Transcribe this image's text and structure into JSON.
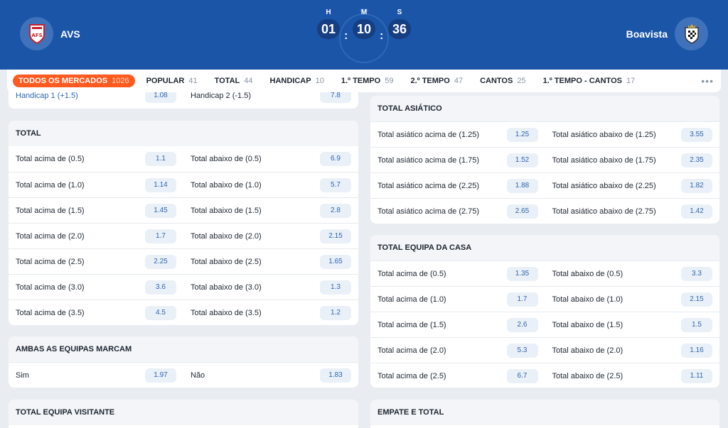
{
  "header": {
    "home": {
      "name": "AVS",
      "logo_text": "AFS",
      "logo_icon": "avs-crest-icon"
    },
    "away": {
      "name": "Boavista",
      "logo_icon": "boavista-crest-icon"
    },
    "timer": {
      "icon": "stopwatch-icon",
      "hours_label": "H",
      "hours": "01",
      "minutes_label": "M",
      "minutes": "10",
      "seconds_label": "S",
      "seconds": "36"
    }
  },
  "tabs": [
    {
      "label": "TODOS OS MERCADOS",
      "count": "1026"
    },
    {
      "label": "POPULAR",
      "count": "41"
    },
    {
      "label": "TOTAL",
      "count": "44"
    },
    {
      "label": "HANDICAP",
      "count": "10"
    },
    {
      "label": "1.º TEMPO",
      "count": "59"
    },
    {
      "label": "2.º TEMPO",
      "count": "47"
    },
    {
      "label": "CANTOS",
      "count": "25"
    },
    {
      "label": "1.º TEMPO - CANTOS",
      "count": "17"
    }
  ],
  "more_icon": "more-dots-icon",
  "handicap_partial": {
    "left": {
      "label": "Handicap 1 (+1.5)",
      "odd": "1.08"
    },
    "right": {
      "label": "Handicap 2 (-1.5)",
      "odd": "7.8"
    }
  },
  "total": {
    "title": "TOTAL",
    "rows": [
      {
        "l": "Total acima de (0.5)",
        "lo": "1.1",
        "r": "Total abaixo de (0.5)",
        "ro": "6.9"
      },
      {
        "l": "Total acima de (1.0)",
        "lo": "1.14",
        "r": "Total abaixo de (1.0)",
        "ro": "5.7"
      },
      {
        "l": "Total acima de (1.5)",
        "lo": "1.45",
        "r": "Total abaixo de (1.5)",
        "ro": "2.8"
      },
      {
        "l": "Total acima de (2.0)",
        "lo": "1.7",
        "r": "Total abaixo de (2.0)",
        "ro": "2.15"
      },
      {
        "l": "Total acima de (2.5)",
        "lo": "2.25",
        "r": "Total abaixo de (2.5)",
        "ro": "1.65"
      },
      {
        "l": "Total acima de (3.0)",
        "lo": "3.6",
        "r": "Total abaixo de (3.0)",
        "ro": "1.3"
      },
      {
        "l": "Total acima de (3.5)",
        "lo": "4.5",
        "r": "Total abaixo de (3.5)",
        "ro": "1.2"
      }
    ]
  },
  "ambas": {
    "title": "AMBAS AS EQUIPAS MARCAM",
    "rows": [
      {
        "l": "Sim",
        "lo": "1.97",
        "r": "Não",
        "ro": "1.83"
      }
    ]
  },
  "visitante": {
    "title": "TOTAL EQUIPA VISITANTE"
  },
  "asiatico": {
    "title": "TOTAL ASIÁTICO",
    "rows": [
      {
        "l": "Total asiático acima de (1.25)",
        "lo": "1.25",
        "r": "Total asiático abaixo de (1.25)",
        "ro": "3.55"
      },
      {
        "l": "Total asiático acima de (1.75)",
        "lo": "1.52",
        "r": "Total asiático abaixo de (1.75)",
        "ro": "2.35"
      },
      {
        "l": "Total asiático acima de (2.25)",
        "lo": "1.88",
        "r": "Total asiático abaixo de (2.25)",
        "ro": "1.82"
      },
      {
        "l": "Total asiático acima de (2.75)",
        "lo": "2.65",
        "r": "Total asiático abaixo de (2.75)",
        "ro": "1.42"
      }
    ]
  },
  "casa": {
    "title": "TOTAL EQUIPA DA CASA",
    "rows": [
      {
        "l": "Total acima de (0.5)",
        "lo": "1.35",
        "r": "Total abaixo de (0.5)",
        "ro": "3.3"
      },
      {
        "l": "Total acima de (1.0)",
        "lo": "1.7",
        "r": "Total abaixo de (1.0)",
        "ro": "2.15"
      },
      {
        "l": "Total acima de (1.5)",
        "lo": "2.6",
        "r": "Total abaixo de (1.5)",
        "ro": "1.5"
      },
      {
        "l": "Total acima de (2.0)",
        "lo": "5.3",
        "r": "Total abaixo de (2.0)",
        "ro": "1.16"
      },
      {
        "l": "Total acima de (2.5)",
        "lo": "6.7",
        "r": "Total abaixo de (2.5)",
        "ro": "1.11"
      }
    ]
  },
  "empate": {
    "title": "EMPATE E TOTAL"
  },
  "colors": {
    "header_bg": "#1a55a8",
    "accent": "#ff5a1f",
    "odd_text": "#2d65b3"
  }
}
